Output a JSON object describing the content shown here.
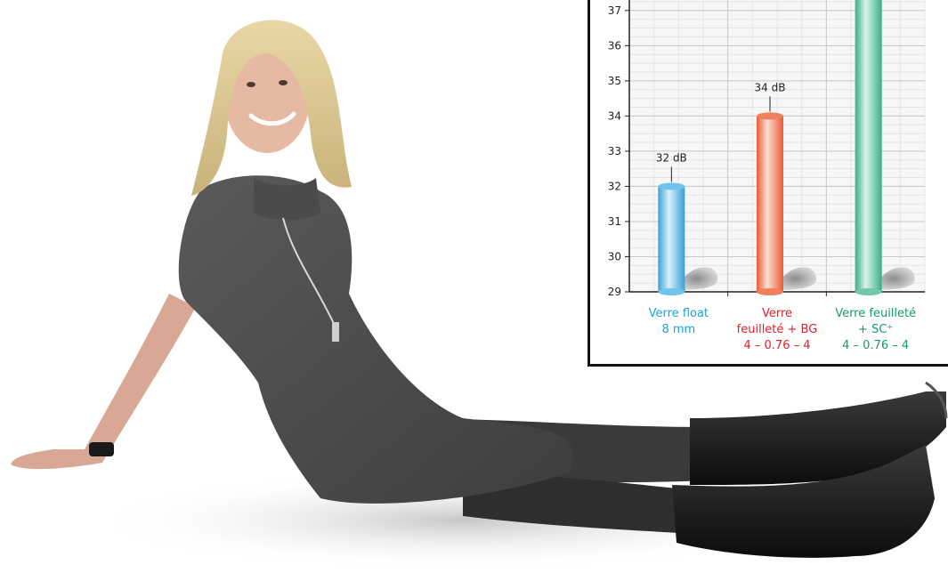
{
  "chart_data": {
    "type": "bar",
    "categories": [
      {
        "lines": [
          "Verre float",
          "8 mm"
        ],
        "color": "#1aa3d8"
      },
      {
        "lines": [
          "Verre",
          "feuilleté + BG",
          "4 – 0.76 – 4"
        ],
        "color": "#e0202a"
      },
      {
        "lines": [
          "Verre feuilleté",
          "+ SC⁺",
          "4 – 0.76 – 4"
        ],
        "color": "#149a6a"
      }
    ],
    "values": [
      32,
      34,
      37.5
    ],
    "data_labels": [
      "32 dB",
      "34 dB",
      ""
    ],
    "yticks": [
      29,
      30,
      31,
      32,
      33,
      34,
      35,
      36,
      37
    ],
    "ylim": [
      29,
      37.4
    ],
    "bar_colors": [
      "#6fc3ec",
      "#f07f5c",
      "#72c9a9"
    ],
    "grid": true
  }
}
